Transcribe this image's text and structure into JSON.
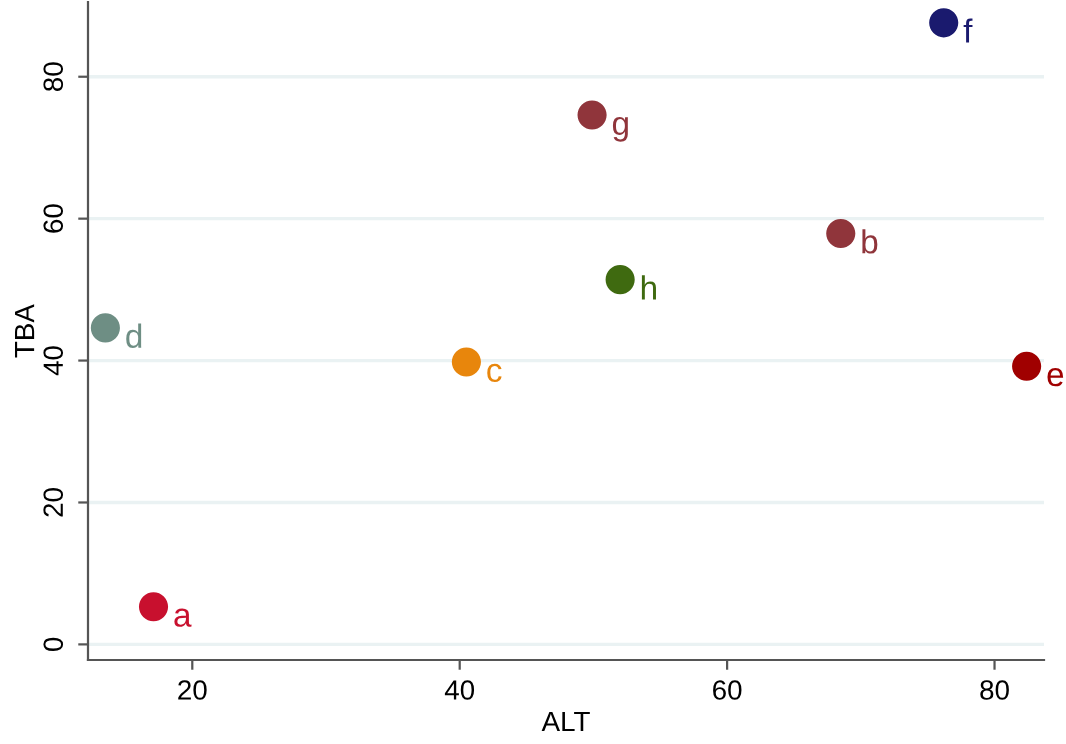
{
  "chart_data": {
    "type": "scatter",
    "xlabel": "ALT",
    "ylabel": "TBA",
    "x": [
      17.1,
      68.5,
      40.5,
      13.5,
      82.4,
      76.2,
      49.9,
      52.0
    ],
    "values": [
      5.3,
      57.9,
      39.8,
      44.6,
      39.2,
      87.6,
      74.6,
      51.4
    ],
    "colors": [
      "#c8102e",
      "#90353b",
      "#e8860c",
      "#6e8e84",
      "#a00000",
      "#1a1a6e",
      "#90353b",
      "#3f6a10"
    ],
    "annotations": [
      {
        "text": "a",
        "x": 17.1,
        "y": 5.3
      },
      {
        "text": "b",
        "x": 68.5,
        "y": 57.9
      },
      {
        "text": "c",
        "x": 40.5,
        "y": 39.8
      },
      {
        "text": "d",
        "x": 13.5,
        "y": 44.6
      },
      {
        "text": "e",
        "x": 82.4,
        "y": 39.2
      },
      {
        "text": "f",
        "x": 76.2,
        "y": 87.6
      },
      {
        "text": "g",
        "x": 49.9,
        "y": 74.6
      },
      {
        "text": "h",
        "x": 52.0,
        "y": 51.4
      }
    ],
    "xlim": [
      12.2,
      83.7
    ],
    "ylim": [
      -2.2,
      90.5
    ],
    "xticks": [
      20,
      40,
      60,
      80
    ],
    "yticks": [
      0,
      20,
      40,
      60,
      80
    ],
    "grid": "y",
    "marker": "circle",
    "legend": false
  }
}
